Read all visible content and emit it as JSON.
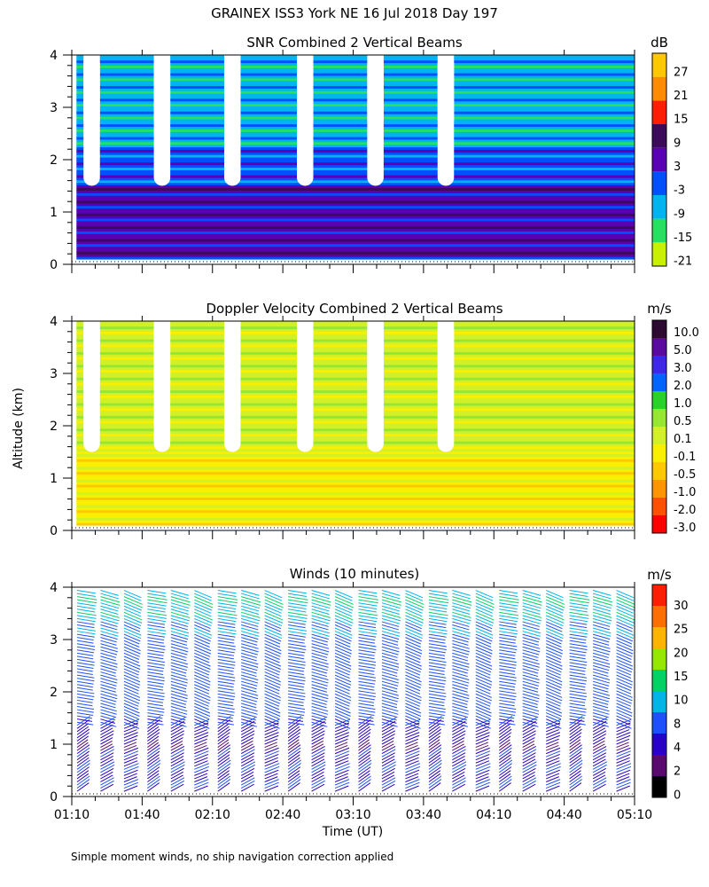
{
  "figure": {
    "title": "GRAINEX ISS3 York NE  16 Jul 2018 Day 197",
    "ylabel": "Altitude (km)",
    "xlabel": "Time (UT)",
    "footnote": "Simple moment winds, no ship navigation correction applied"
  },
  "colors": {
    "snr_scale": [
      "#c8f000",
      "#28e060",
      "#00b4f0",
      "#0050ff",
      "#5a00b4",
      "#3c0a5a",
      "#ff1e00",
      "#ff8c00",
      "#ffc800"
    ],
    "velocity_scale": [
      "#ff0000",
      "#ff5000",
      "#ff9600",
      "#ffc800",
      "#f8f000",
      "#d2f028",
      "#96e632",
      "#28d228",
      "#0064ff",
      "#3c28e6",
      "#5a0aa0",
      "#2d0a32"
    ],
    "wind_scale": [
      "#000000",
      "#5a0a6e",
      "#2800c8",
      "#1e50ff",
      "#00b4e6",
      "#00d264",
      "#96e600",
      "#ffb400",
      "#ff6e00",
      "#ff1e00"
    ]
  },
  "chart_data": [
    {
      "type": "heatmap",
      "title": "SNR Combined 2 Vertical Beams",
      "x_axis": "time",
      "xlim": [
        "01:10",
        "05:10"
      ],
      "xticks": [
        "01:10",
        "01:40",
        "02:10",
        "02:40",
        "03:10",
        "03:40",
        "04:10",
        "04:40",
        "05:10"
      ],
      "ylim": [
        0,
        4
      ],
      "yticks": [
        0,
        1,
        2,
        3,
        4
      ],
      "colorbar_unit": "dB",
      "colorbar_ticks": [
        "27",
        "21",
        "15",
        "9",
        "3",
        "-3",
        "-9",
        "-15",
        "-21"
      ],
      "colorbar_bounds": [
        -24,
        30
      ],
      "gaps": [
        {
          "start": "01:15",
          "end": "01:22",
          "from_km": 1.5,
          "to_km": 4
        },
        {
          "start": "01:45",
          "end": "01:52",
          "from_km": 1.5,
          "to_km": 4
        },
        {
          "start": "02:15",
          "end": "02:22",
          "from_km": 1.5,
          "to_km": 4
        },
        {
          "start": "02:46",
          "end": "02:53",
          "from_km": 1.5,
          "to_km": 4
        },
        {
          "start": "03:16",
          "end": "03:23",
          "from_km": 1.5,
          "to_km": 4
        },
        {
          "start": "03:46",
          "end": "03:53",
          "from_km": 1.5,
          "to_km": 4
        }
      ],
      "profile": [
        {
          "from_km": 0.1,
          "to_km": 0.4,
          "dB": 3
        },
        {
          "from_km": 0.4,
          "to_km": 1.5,
          "dB": 3
        },
        {
          "from_km": 1.5,
          "to_km": 2.2,
          "dB": -3
        },
        {
          "from_km": 2.2,
          "to_km": 4.0,
          "dB": -9
        }
      ]
    },
    {
      "type": "heatmap",
      "title": "Doppler Velocity Combined 2 Vertical Beams",
      "x_axis": "time",
      "xlim": [
        "01:10",
        "05:10"
      ],
      "xticks": [
        "01:10",
        "01:40",
        "02:10",
        "02:40",
        "03:10",
        "03:40",
        "04:10",
        "04:40",
        "05:10"
      ],
      "ylim": [
        0,
        4
      ],
      "yticks": [
        0,
        1,
        2,
        3,
        4
      ],
      "colorbar_unit": "m/s",
      "colorbar_ticks": [
        "10.0",
        "5.0",
        "3.0",
        "2.0",
        "1.0",
        "0.5",
        "0.1",
        "-0.1",
        "-0.5",
        "-1.0",
        "-2.0",
        "-3.0"
      ],
      "gaps": [
        {
          "start": "01:15",
          "end": "01:22",
          "from_km": 1.5,
          "to_km": 4
        },
        {
          "start": "01:45",
          "end": "01:52",
          "from_km": 1.5,
          "to_km": 4
        },
        {
          "start": "02:15",
          "end": "02:22",
          "from_km": 1.5,
          "to_km": 4
        },
        {
          "start": "02:46",
          "end": "02:53",
          "from_km": 1.5,
          "to_km": 4
        },
        {
          "start": "03:16",
          "end": "03:23",
          "from_km": 1.5,
          "to_km": 4
        },
        {
          "start": "03:46",
          "end": "03:53",
          "from_km": 1.5,
          "to_km": 4
        }
      ],
      "profile": [
        {
          "from_km": 0.1,
          "to_km": 1.5,
          "m_s": -0.5
        },
        {
          "from_km": 1.5,
          "to_km": 4.0,
          "m_s": -0.1
        }
      ]
    },
    {
      "type": "scatter",
      "title": "Winds (10 minutes)",
      "x_axis": "time",
      "xlim": [
        "01:10",
        "05:10"
      ],
      "xticks": [
        "01:10",
        "01:40",
        "02:10",
        "02:40",
        "03:10",
        "03:40",
        "04:10",
        "04:40",
        "05:10"
      ],
      "ylim": [
        0,
        4
      ],
      "yticks": [
        0,
        1,
        2,
        3,
        4
      ],
      "colorbar_unit": "m/s",
      "colorbar_ticks": [
        "30",
        "25",
        "20",
        "15",
        "10",
        "8",
        "4",
        "2",
        "0"
      ],
      "profile_times": [
        "01:10",
        "01:20",
        "01:30",
        "01:40",
        "01:50",
        "02:00",
        "02:10",
        "02:20",
        "02:30",
        "02:40",
        "02:50",
        "03:00",
        "03:10",
        "03:20",
        "03:30",
        "03:40",
        "03:50",
        "04:00",
        "04:10",
        "04:20",
        "04:30",
        "04:40",
        "04:50",
        "05:00"
      ],
      "speed_profile_m_s": [
        {
          "alt_km": 0.2,
          "speed": 3
        },
        {
          "alt_km": 0.6,
          "speed": 4
        },
        {
          "alt_km": 1.0,
          "speed": 2
        },
        {
          "alt_km": 1.5,
          "speed": 5
        },
        {
          "alt_km": 2.0,
          "speed": 6
        },
        {
          "alt_km": 2.5,
          "speed": 6
        },
        {
          "alt_km": 3.0,
          "speed": 7
        },
        {
          "alt_km": 3.5,
          "speed": 9
        },
        {
          "alt_km": 3.9,
          "speed": 10
        }
      ]
    }
  ]
}
